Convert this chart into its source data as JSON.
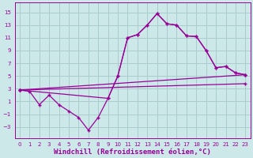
{
  "bg_color": "#cce8e8",
  "grid_color": "#aacccc",
  "line_color": "#990099",
  "xlabel": "Windchill (Refroidissement éolien,°C)",
  "xlabel_fontsize": 6.5,
  "ylabel_ticks": [
    -3,
    -1,
    1,
    3,
    5,
    7,
    9,
    11,
    13,
    15
  ],
  "xlim": [
    -0.5,
    23.5
  ],
  "ylim": [
    -4.8,
    16.5
  ],
  "xticks": [
    0,
    1,
    2,
    3,
    4,
    5,
    6,
    7,
    8,
    9,
    10,
    11,
    12,
    13,
    14,
    15,
    16,
    17,
    18,
    19,
    20,
    21,
    22,
    23
  ],
  "line1_x": [
    0,
    1,
    2,
    3,
    4,
    5,
    6,
    7,
    8,
    9,
    10,
    11,
    12,
    13,
    14,
    15,
    16,
    17,
    18,
    19,
    20,
    21,
    22,
    23
  ],
  "line1_y": [
    2.8,
    2.6,
    0.5,
    2.0,
    0.5,
    -0.5,
    -1.5,
    -3.5,
    -1.5,
    1.5,
    5.0,
    11.0,
    11.5,
    13.0,
    14.8,
    13.2,
    13.0,
    11.3,
    11.2,
    9.0,
    6.3,
    6.5,
    5.5,
    5.2
  ],
  "line2_x": [
    0,
    9,
    10,
    11,
    12,
    13,
    14,
    15,
    16,
    17,
    18,
    19,
    20,
    21,
    22,
    23
  ],
  "line2_y": [
    2.8,
    1.5,
    5.0,
    11.0,
    11.5,
    13.0,
    14.8,
    13.2,
    13.0,
    11.3,
    11.2,
    9.0,
    6.3,
    6.5,
    5.5,
    5.2
  ],
  "line3_x": [
    0,
    23
  ],
  "line3_y": [
    2.8,
    5.2
  ],
  "line4_x": [
    0,
    23
  ],
  "line4_y": [
    2.8,
    3.8
  ]
}
